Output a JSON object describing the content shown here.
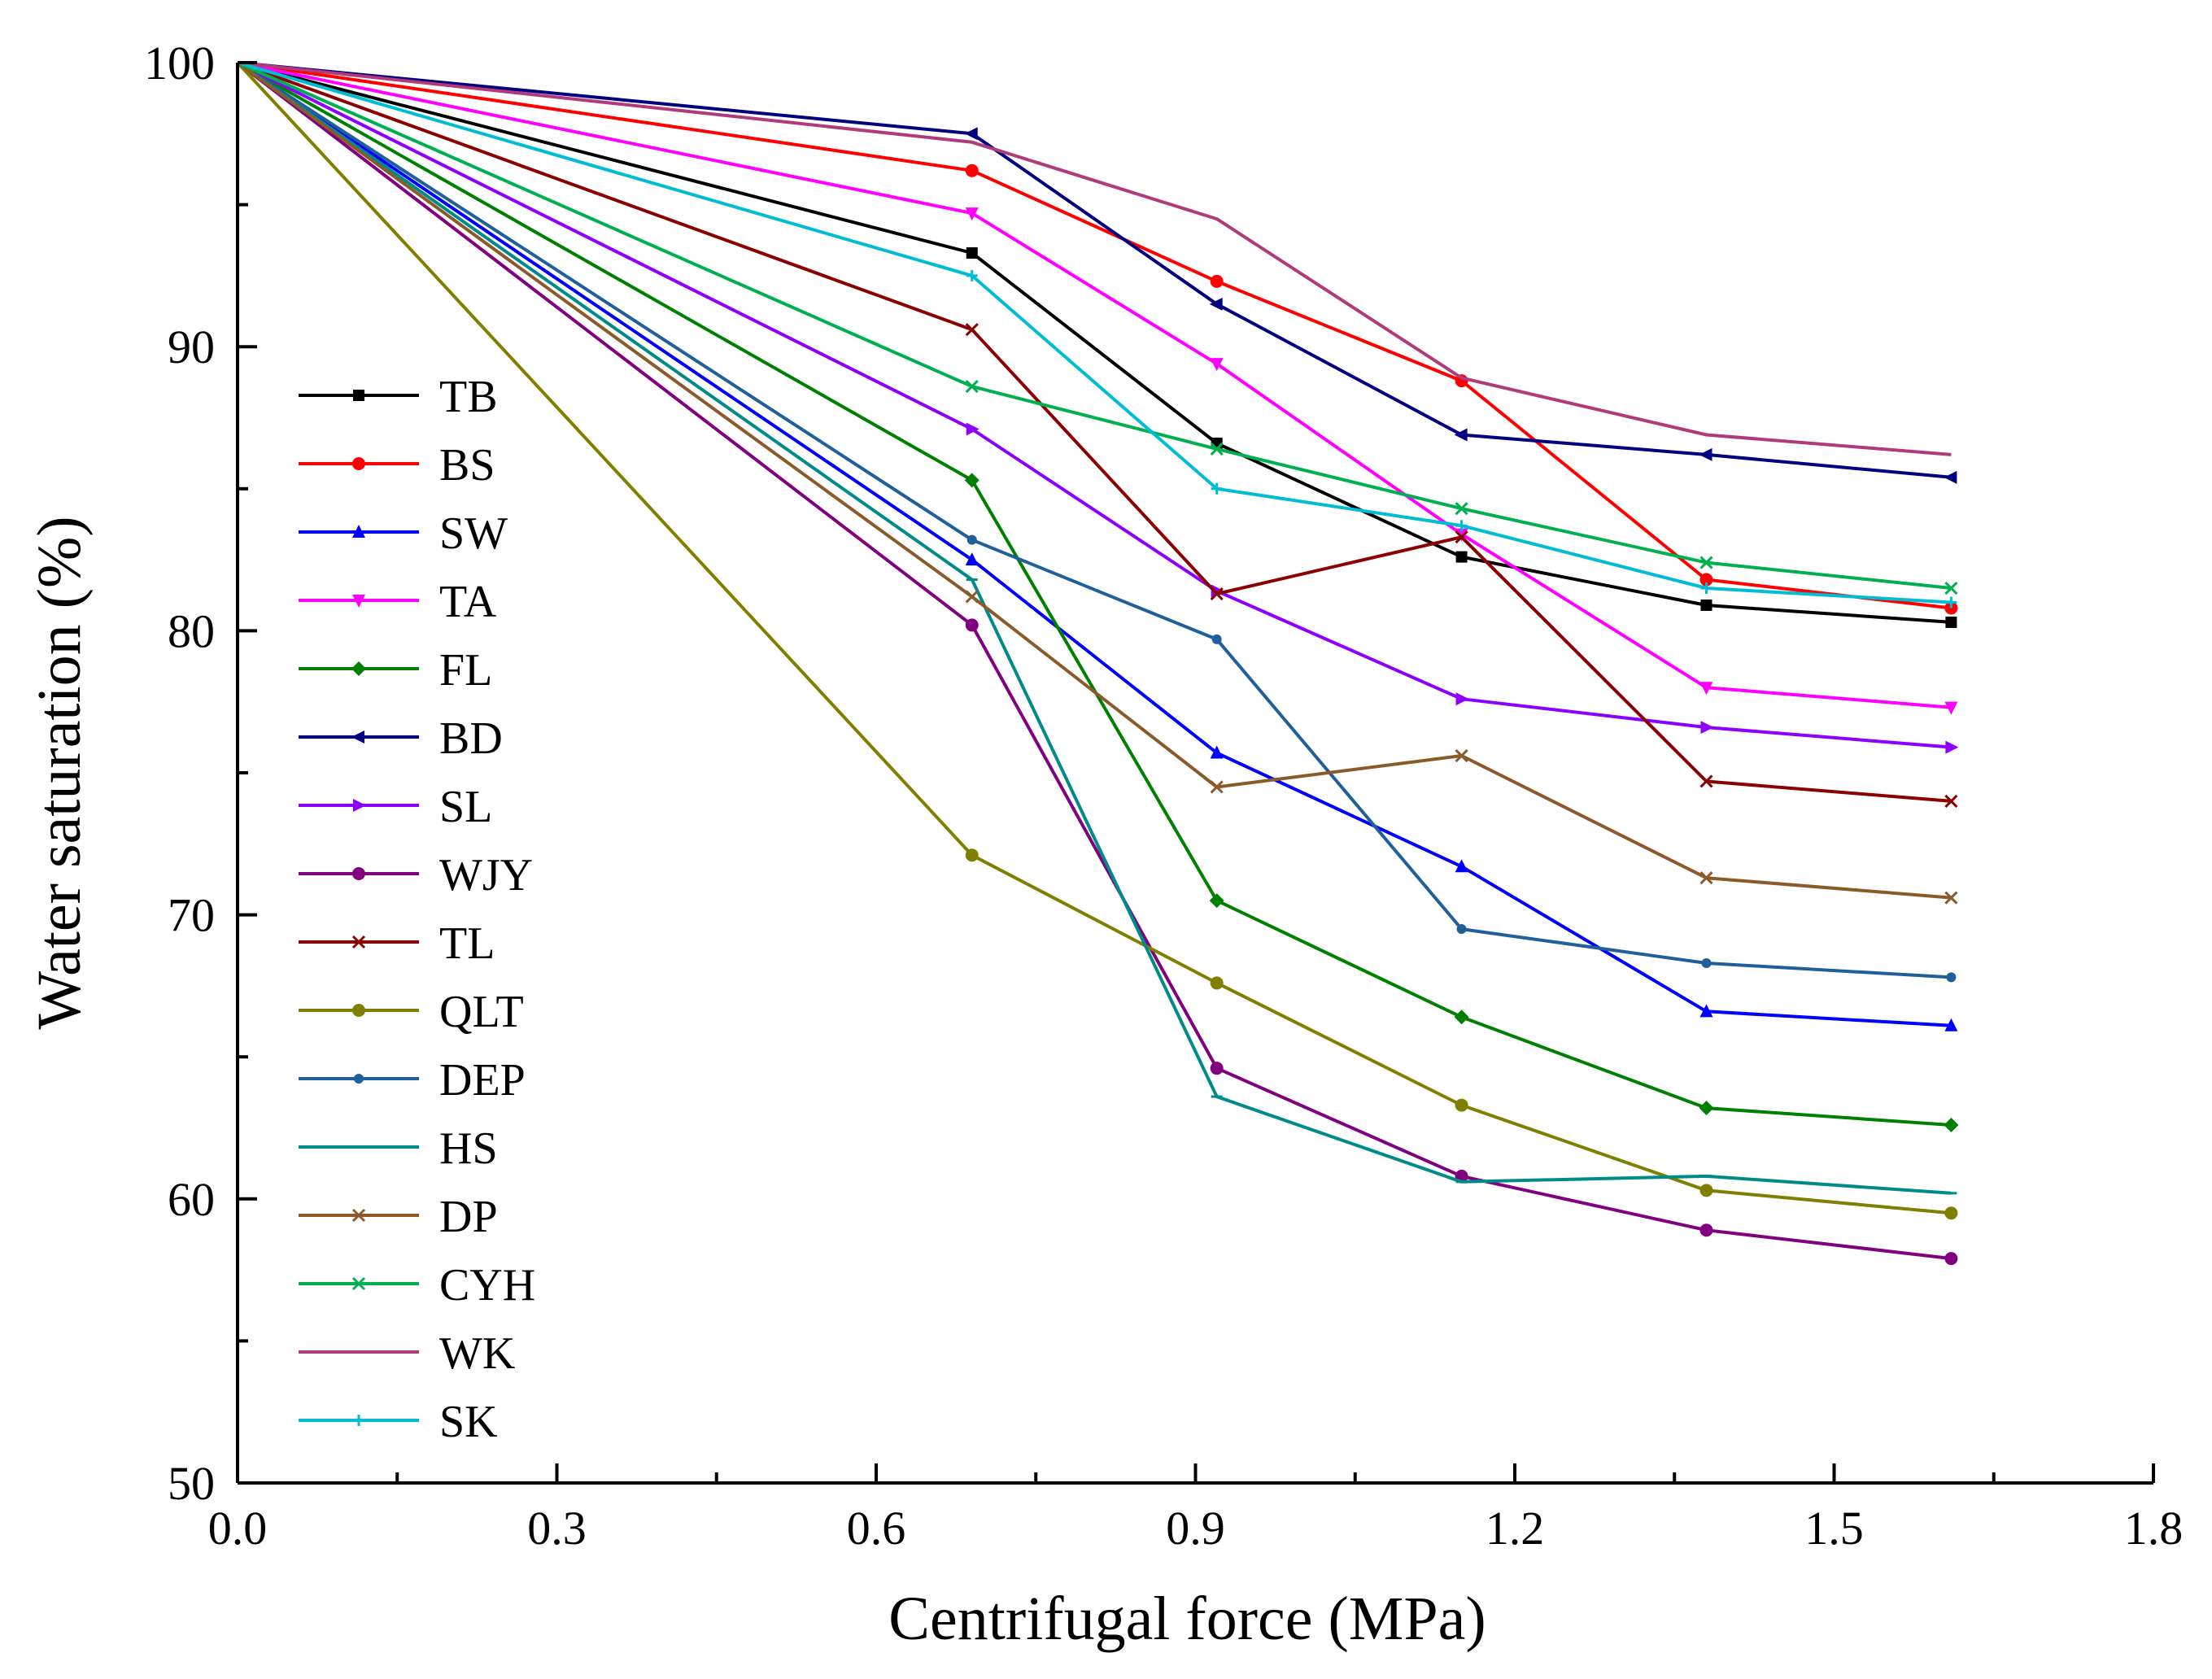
{
  "chart_data": {
    "type": "line",
    "title": "",
    "xlabel": "Centrifugal force (MPa)",
    "ylabel": "Water saturation (%)",
    "xlim": [
      0.0,
      1.8
    ],
    "ylim": [
      50,
      100
    ],
    "xticks": [
      "0.0",
      "0.3",
      "0.6",
      "0.9",
      "1.2",
      "1.5",
      "1.8"
    ],
    "yticks": [
      "50",
      "60",
      "70",
      "80",
      "90",
      "100"
    ],
    "legend_position": "left",
    "x": [
      0.0,
      0.69,
      0.92,
      1.15,
      1.38,
      1.61
    ],
    "series": [
      {
        "name": "TB",
        "color": "#000000",
        "marker": "square",
        "values": [
          100,
          93.3,
          86.6,
          82.6,
          80.9,
          80.3
        ]
      },
      {
        "name": "BS",
        "color": "#ff0000",
        "marker": "circle",
        "values": [
          100,
          96.2,
          92.3,
          88.8,
          81.8,
          80.8
        ]
      },
      {
        "name": "SW",
        "color": "#0000ff",
        "marker": "triangle",
        "values": [
          100,
          82.5,
          75.7,
          71.7,
          66.6,
          66.1
        ]
      },
      {
        "name": "TA",
        "color": "#ff00ff",
        "marker": "triangle-down",
        "values": [
          100,
          94.7,
          89.4,
          83.4,
          78.0,
          77.3
        ]
      },
      {
        "name": "FL",
        "color": "#008000",
        "marker": "diamond",
        "values": [
          100,
          85.3,
          70.5,
          66.4,
          63.2,
          62.6
        ]
      },
      {
        "name": "BD",
        "color": "#000080",
        "marker": "triangle-left",
        "values": [
          100,
          97.5,
          91.5,
          86.9,
          86.2,
          85.4
        ]
      },
      {
        "name": "SL",
        "color": "#8b00ff",
        "marker": "triangle-right",
        "values": [
          100,
          87.1,
          81.4,
          77.6,
          76.6,
          75.9
        ]
      },
      {
        "name": "WJY",
        "color": "#800080",
        "marker": "hexagon",
        "values": [
          100,
          80.2,
          64.6,
          60.8,
          58.9,
          57.9
        ]
      },
      {
        "name": "TL",
        "color": "#8b0000",
        "marker": "star",
        "values": [
          100,
          90.6,
          81.3,
          83.3,
          74.7,
          74.0
        ]
      },
      {
        "name": "QLT",
        "color": "#808000",
        "marker": "pentagon",
        "values": [
          100,
          72.1,
          67.6,
          63.3,
          60.3,
          59.5
        ]
      },
      {
        "name": "DEP",
        "color": "#1f5f9a",
        "marker": "circle-small",
        "values": [
          100,
          83.2,
          79.7,
          69.5,
          68.3,
          67.8
        ]
      },
      {
        "name": "HS",
        "color": "#008b8b",
        "marker": "dash",
        "values": [
          100,
          81.8,
          63.6,
          60.6,
          60.8,
          60.2
        ]
      },
      {
        "name": "DP",
        "color": "#8b5a2b",
        "marker": "x",
        "values": [
          100,
          81.2,
          74.5,
          75.6,
          71.3,
          70.6
        ]
      },
      {
        "name": "CYH",
        "color": "#00b050",
        "marker": "x",
        "values": [
          100,
          88.6,
          86.4,
          84.3,
          82.4,
          81.5
        ]
      },
      {
        "name": "WK",
        "color": "#b03a7a",
        "marker": "none",
        "values": [
          100,
          97.2,
          94.5,
          88.9,
          86.9,
          86.2
        ]
      },
      {
        "name": "SK",
        "color": "#00bcd4",
        "marker": "plus",
        "values": [
          100,
          92.5,
          85.0,
          83.7,
          81.5,
          81.0
        ]
      }
    ]
  }
}
